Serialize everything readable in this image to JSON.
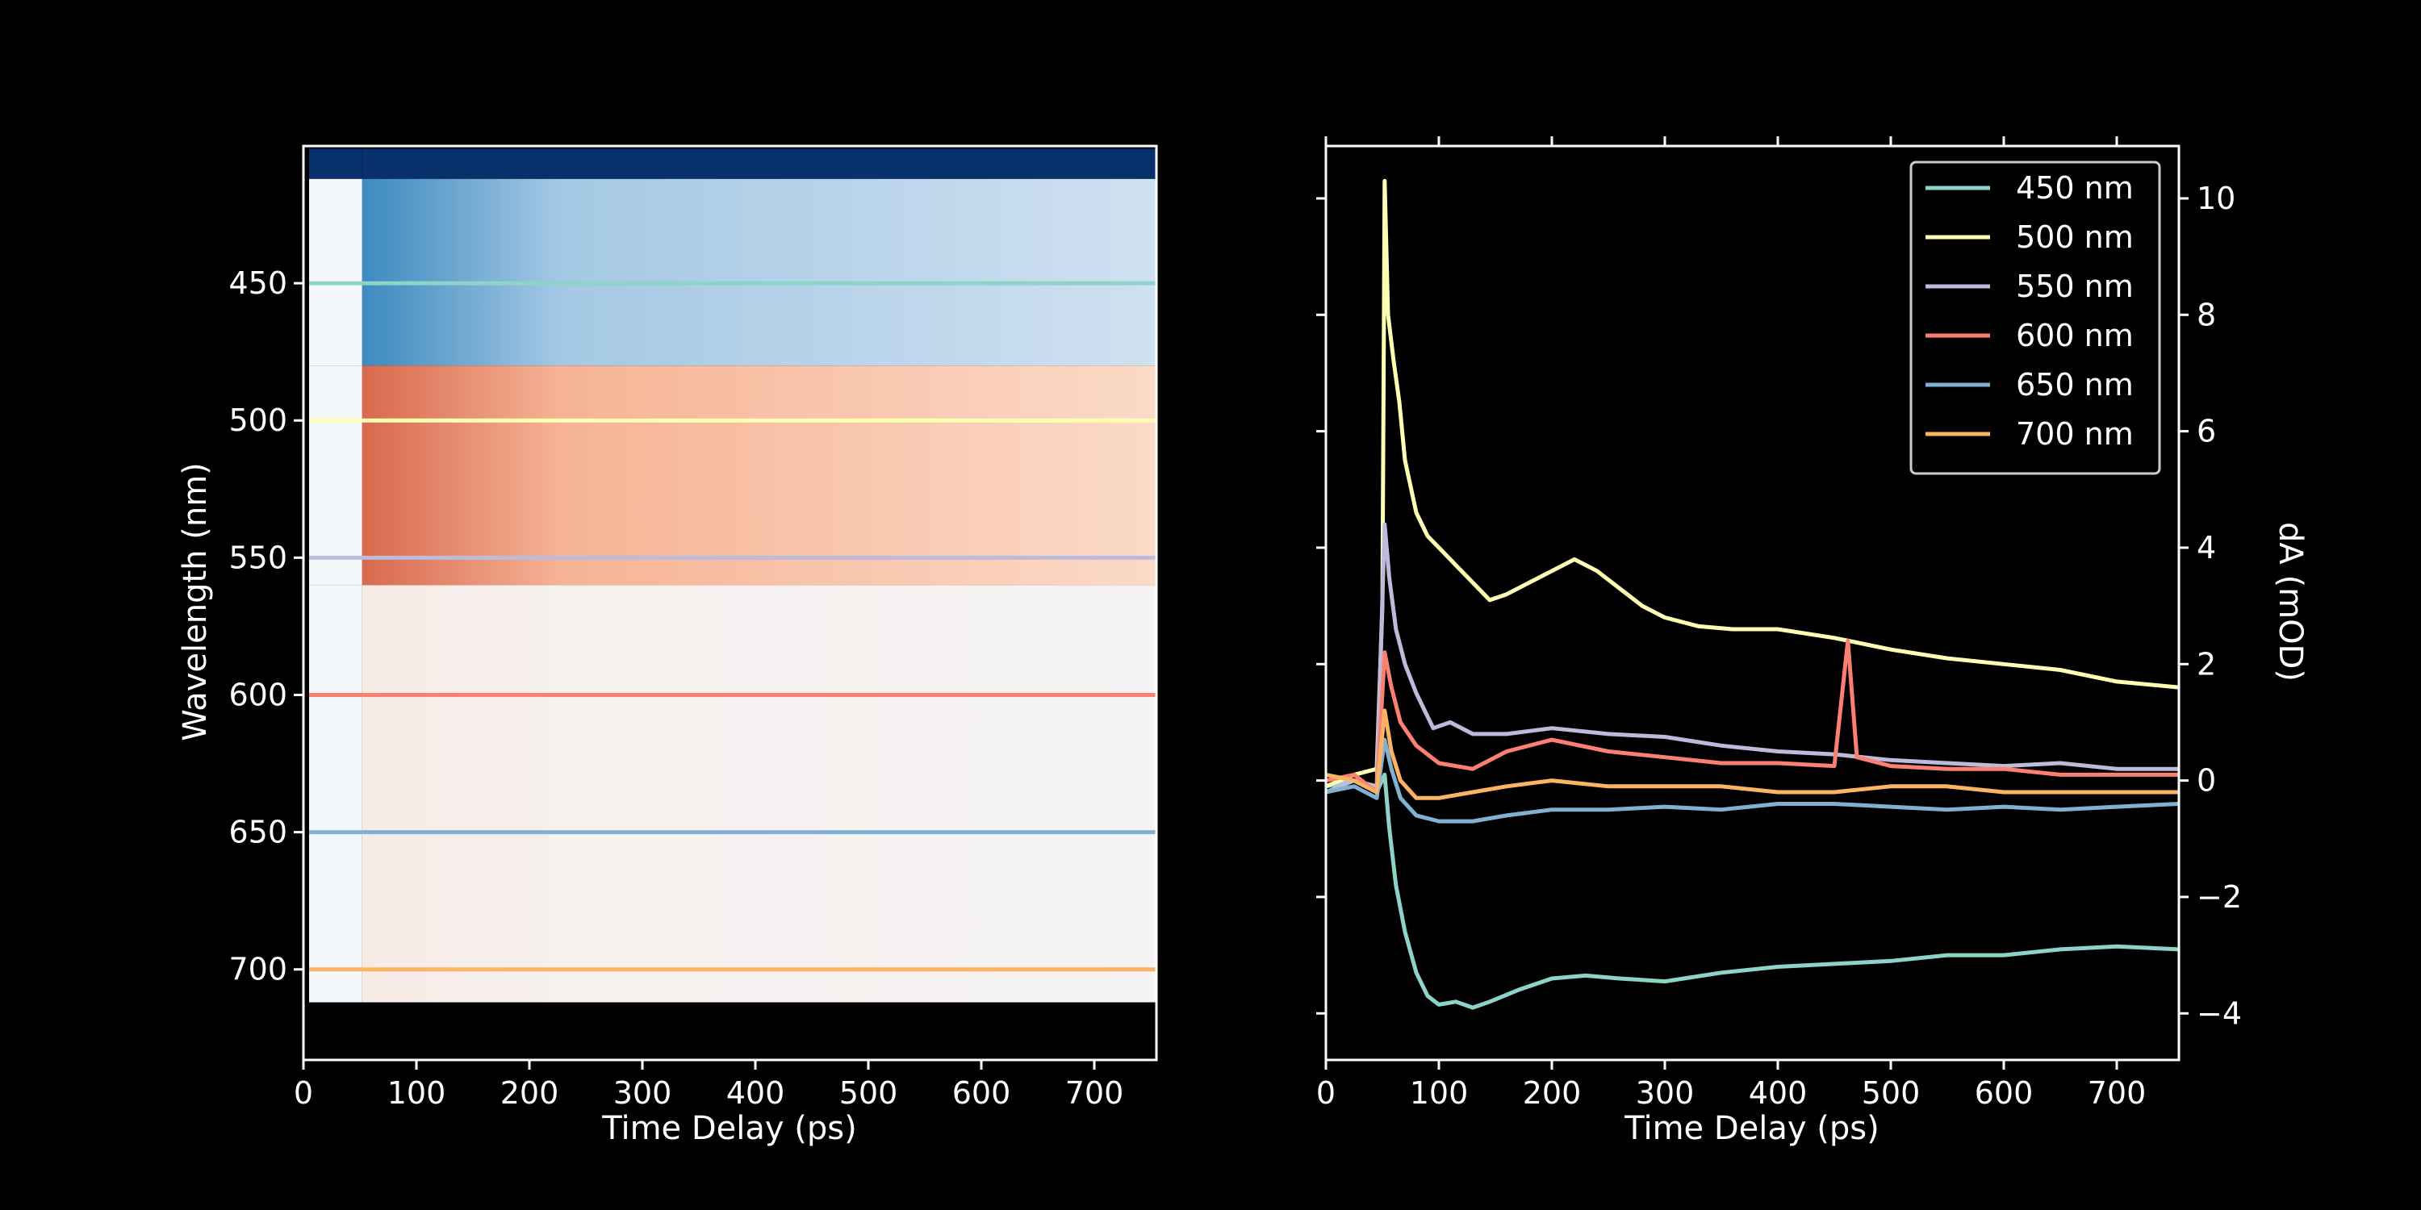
{
  "chart_data": [
    {
      "type": "heatmap",
      "xlabel": "Time Delay (ps)",
      "ylabel": "Wavelength (nm)",
      "xlim": [
        0,
        755
      ],
      "ylim": [
        733,
        400
      ],
      "xticks": [
        0,
        100,
        200,
        300,
        400,
        500,
        600,
        700
      ],
      "yticks": [
        450,
        500,
        550,
        600,
        650,
        700
      ],
      "xtick_labels": [
        "0",
        "100",
        "200",
        "300",
        "400",
        "500",
        "600",
        "700"
      ],
      "ytick_labels": [
        "450",
        "500",
        "550",
        "600",
        "650",
        "700"
      ],
      "colormap": "diverging blue-white-red",
      "data_wavelength_range": [
        401,
        712
      ],
      "data_time_range": [
        5,
        755
      ],
      "pump_onset_ps": 52,
      "bands": [
        {
          "wavelength_from": 401,
          "wavelength_to": 412,
          "level": -1.0
        },
        {
          "wavelength_from": 412,
          "wavelength_to": 480,
          "level": -0.3
        },
        {
          "wavelength_from": 480,
          "wavelength_to": 560,
          "level": 0.35
        },
        {
          "wavelength_from": 560,
          "wavelength_to": 712,
          "level": 0.05
        }
      ],
      "cut_lines": [
        {
          "wavelength": 450,
          "color": "#8dd3c7"
        },
        {
          "wavelength": 500,
          "color": "#ffffb3"
        },
        {
          "wavelength": 550,
          "color": "#bebada"
        },
        {
          "wavelength": 600,
          "color": "#fb8072"
        },
        {
          "wavelength": 650,
          "color": "#80b1d3"
        },
        {
          "wavelength": 700,
          "color": "#fdb462"
        }
      ]
    },
    {
      "type": "line",
      "xlabel": "Time Delay (ps)",
      "ylabel": "dA (mOD)",
      "xlim": [
        0,
        755
      ],
      "ylim": [
        -4.8,
        10.9
      ],
      "xticks": [
        0,
        100,
        200,
        300,
        400,
        500,
        600,
        700
      ],
      "yticks": [
        -4,
        -2,
        0,
        2,
        4,
        6,
        8,
        10
      ],
      "xtick_labels": [
        "0",
        "100",
        "200",
        "300",
        "400",
        "500",
        "600",
        "700"
      ],
      "ytick_labels": [
        "−4",
        "−2",
        "0",
        "2",
        "4",
        "6",
        "8",
        "10"
      ],
      "legend_position": "top-right",
      "series": [
        {
          "name": "450 nm",
          "color": "#8dd3c7",
          "points": [
            [
              0,
              -0.1
            ],
            [
              25,
              0
            ],
            [
              45,
              -0.2
            ],
            [
              52,
              0.1
            ],
            [
              56,
              -0.8
            ],
            [
              62,
              -1.8
            ],
            [
              70,
              -2.6
            ],
            [
              80,
              -3.3
            ],
            [
              90,
              -3.7
            ],
            [
              100,
              -3.85
            ],
            [
              115,
              -3.8
            ],
            [
              130,
              -3.9
            ],
            [
              145,
              -3.8
            ],
            [
              170,
              -3.6
            ],
            [
              200,
              -3.4
            ],
            [
              230,
              -3.35
            ],
            [
              260,
              -3.4
            ],
            [
              300,
              -3.45
            ],
            [
              350,
              -3.3
            ],
            [
              400,
              -3.2
            ],
            [
              450,
              -3.15
            ],
            [
              500,
              -3.1
            ],
            [
              550,
              -3.0
            ],
            [
              600,
              -3.0
            ],
            [
              650,
              -2.9
            ],
            [
              700,
              -2.85
            ],
            [
              755,
              -2.9
            ]
          ]
        },
        {
          "name": "500 nm",
          "color": "#ffffb3",
          "points": [
            [
              0,
              -0.1
            ],
            [
              25,
              0.1
            ],
            [
              45,
              0.2
            ],
            [
              50,
              3.0
            ],
            [
              52,
              10.3
            ],
            [
              55,
              8.0
            ],
            [
              60,
              7.2
            ],
            [
              65,
              6.5
            ],
            [
              70,
              5.5
            ],
            [
              80,
              4.6
            ],
            [
              90,
              4.2
            ],
            [
              100,
              4.0
            ],
            [
              115,
              3.7
            ],
            [
              130,
              3.4
            ],
            [
              145,
              3.1
            ],
            [
              160,
              3.2
            ],
            [
              180,
              3.4
            ],
            [
              200,
              3.6
            ],
            [
              220,
              3.8
            ],
            [
              240,
              3.6
            ],
            [
              260,
              3.3
            ],
            [
              280,
              3.0
            ],
            [
              300,
              2.8
            ],
            [
              330,
              2.65
            ],
            [
              360,
              2.6
            ],
            [
              400,
              2.6
            ],
            [
              450,
              2.45
            ],
            [
              500,
              2.25
            ],
            [
              550,
              2.1
            ],
            [
              600,
              2.0
            ],
            [
              650,
              1.9
            ],
            [
              700,
              1.7
            ],
            [
              755,
              1.6
            ]
          ]
        },
        {
          "name": "550 nm",
          "color": "#bebada",
          "points": [
            [
              0,
              -0.2
            ],
            [
              25,
              0
            ],
            [
              45,
              -0.1
            ],
            [
              52,
              4.4
            ],
            [
              56,
              3.5
            ],
            [
              62,
              2.6
            ],
            [
              70,
              2.0
            ],
            [
              80,
              1.5
            ],
            [
              95,
              0.9
            ],
            [
              110,
              1.0
            ],
            [
              130,
              0.8
            ],
            [
              160,
              0.8
            ],
            [
              200,
              0.9
            ],
            [
              250,
              0.8
            ],
            [
              300,
              0.75
            ],
            [
              350,
              0.6
            ],
            [
              400,
              0.5
            ],
            [
              450,
              0.45
            ],
            [
              500,
              0.35
            ],
            [
              550,
              0.3
            ],
            [
              600,
              0.25
            ],
            [
              650,
              0.3
            ],
            [
              700,
              0.2
            ],
            [
              755,
              0.2
            ]
          ]
        },
        {
          "name": "600 nm",
          "color": "#fb8072",
          "points": [
            [
              0,
              0
            ],
            [
              25,
              0.1
            ],
            [
              45,
              -0.2
            ],
            [
              52,
              2.2
            ],
            [
              58,
              1.6
            ],
            [
              66,
              1.0
            ],
            [
              80,
              0.6
            ],
            [
              100,
              0.3
            ],
            [
              130,
              0.2
            ],
            [
              160,
              0.5
            ],
            [
              200,
              0.7
            ],
            [
              250,
              0.5
            ],
            [
              300,
              0.4
            ],
            [
              350,
              0.3
            ],
            [
              400,
              0.3
            ],
            [
              450,
              0.25
            ],
            [
              462,
              2.4
            ],
            [
              470,
              0.4
            ],
            [
              500,
              0.25
            ],
            [
              550,
              0.2
            ],
            [
              600,
              0.2
            ],
            [
              650,
              0.1
            ],
            [
              700,
              0.1
            ],
            [
              755,
              0.1
            ]
          ]
        },
        {
          "name": "650 nm",
          "color": "#80b1d3",
          "points": [
            [
              0,
              -0.2
            ],
            [
              25,
              -0.1
            ],
            [
              45,
              -0.3
            ],
            [
              52,
              0.7
            ],
            [
              58,
              0.2
            ],
            [
              66,
              -0.3
            ],
            [
              80,
              -0.6
            ],
            [
              100,
              -0.7
            ],
            [
              130,
              -0.7
            ],
            [
              160,
              -0.6
            ],
            [
              200,
              -0.5
            ],
            [
              250,
              -0.5
            ],
            [
              300,
              -0.45
            ],
            [
              350,
              -0.5
            ],
            [
              400,
              -0.4
            ],
            [
              450,
              -0.4
            ],
            [
              500,
              -0.45
            ],
            [
              550,
              -0.5
            ],
            [
              600,
              -0.45
            ],
            [
              650,
              -0.5
            ],
            [
              700,
              -0.45
            ],
            [
              755,
              -0.4
            ]
          ]
        },
        {
          "name": "700 nm",
          "color": "#fdb462",
          "points": [
            [
              0,
              0.1
            ],
            [
              25,
              0
            ],
            [
              45,
              -0.2
            ],
            [
              52,
              1.2
            ],
            [
              58,
              0.5
            ],
            [
              66,
              0
            ],
            [
              80,
              -0.3
            ],
            [
              100,
              -0.3
            ],
            [
              130,
              -0.2
            ],
            [
              160,
              -0.1
            ],
            [
              200,
              0
            ],
            [
              250,
              -0.1
            ],
            [
              300,
              -0.1
            ],
            [
              350,
              -0.1
            ],
            [
              400,
              -0.2
            ],
            [
              450,
              -0.2
            ],
            [
              500,
              -0.1
            ],
            [
              550,
              -0.1
            ],
            [
              600,
              -0.2
            ],
            [
              650,
              -0.2
            ],
            [
              700,
              -0.2
            ],
            [
              755,
              -0.2
            ]
          ]
        }
      ]
    }
  ]
}
